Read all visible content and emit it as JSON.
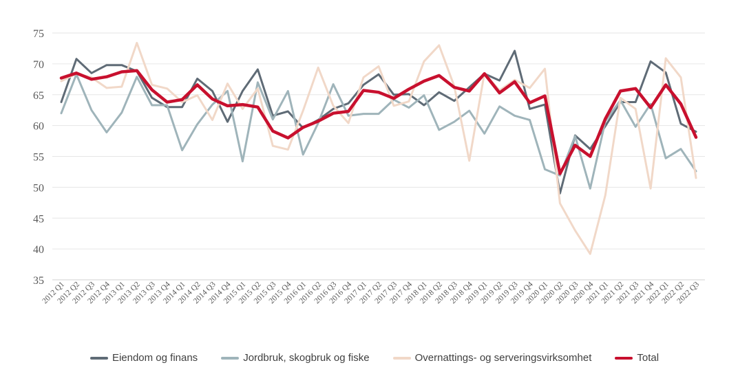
{
  "chart_data": {
    "type": "line",
    "title": "",
    "xlabel": "",
    "ylabel": "",
    "ylim": [
      35,
      75
    ],
    "yticks": [
      35,
      40,
      45,
      50,
      55,
      60,
      65,
      70,
      75
    ],
    "grid": true,
    "legend_position": "bottom",
    "categories": [
      "2012 Q1",
      "2012 Q2",
      "2012 Q3",
      "2012 Q4",
      "2013 Q1",
      "2013 Q2",
      "2013 Q3",
      "2013 Q4",
      "2014 Q1",
      "2014 Q2",
      "2014 Q3",
      "2014 Q4",
      "2015 Q1",
      "2015 Q2",
      "2015 Q3",
      "2015 Q4",
      "2016 Q1",
      "2016 Q2",
      "2016 Q3",
      "2016 Q4",
      "2017 Q1",
      "2017 Q2",
      "2017 Q3",
      "2017 Q4",
      "2018 Q1",
      "2018 Q2",
      "2018 Q3",
      "2018 Q4",
      "2019 Q1",
      "2019 Q2",
      "2019 Q3",
      "2019 Q4",
      "2020 Q1",
      "2020 Q2",
      "2020 Q3",
      "2020 Q4",
      "2021 Q1",
      "2021 Q2",
      "2021 Q3",
      "2021 Q4",
      "2022 Q1",
      "2022 Q2",
      "2022 Q3"
    ],
    "series": [
      {
        "name": "Eiendom og finans",
        "color": "#5f6b76",
        "width": 3,
        "values": [
          63.8,
          70.8,
          68.5,
          69.8,
          69.8,
          68.8,
          64.5,
          63.0,
          63.0,
          67.6,
          65.6,
          60.6,
          65.6,
          69.1,
          61.6,
          62.3,
          59.6,
          60.9,
          62.7,
          63.6,
          66.6,
          68.3,
          65.0,
          65.1,
          63.3,
          65.4,
          64.0,
          66.2,
          68.4,
          67.3,
          72.1,
          62.7,
          63.4,
          49.0,
          58.4,
          56.2,
          59.9,
          63.8,
          63.8,
          70.4,
          68.6,
          60.3,
          59.0
        ]
      },
      {
        "name": "Jordbruk, skogbruk og fiske",
        "color": "#9fb4ba",
        "width": 3,
        "values": [
          62.0,
          68.3,
          62.5,
          58.9,
          62.1,
          67.9,
          63.3,
          63.3,
          56.0,
          60.2,
          63.4,
          65.6,
          54.2,
          67.0,
          61.0,
          65.6,
          55.3,
          60.4,
          66.7,
          61.6,
          61.9,
          61.9,
          64.2,
          62.9,
          64.9,
          59.3,
          60.6,
          62.4,
          58.7,
          63.1,
          61.6,
          60.9,
          52.9,
          51.9,
          58.3,
          49.8,
          60.7,
          64.1,
          59.8,
          63.5,
          54.7,
          56.2,
          52.6
        ]
      },
      {
        "name": "Overnattings- og serveringsvirksomhet",
        "color": "#f1d8c8",
        "width": 3,
        "values": [
          67.2,
          68.4,
          67.8,
          66.1,
          66.3,
          73.4,
          66.6,
          66.0,
          63.8,
          64.9,
          60.9,
          66.8,
          62.7,
          66.0,
          56.7,
          56.1,
          62.4,
          69.4,
          63.2,
          60.4,
          67.8,
          69.6,
          63.2,
          63.9,
          70.4,
          73.0,
          66.4,
          54.3,
          68.5,
          65.7,
          67.4,
          66.1,
          69.2,
          47.4,
          43.0,
          39.2,
          48.7,
          64.5,
          62.7,
          49.8,
          70.9,
          67.8,
          51.5
        ]
      },
      {
        "name": "Total",
        "color": "#c8102e",
        "width": 4.5,
        "values": [
          67.7,
          68.5,
          67.5,
          67.9,
          68.7,
          68.9,
          65.8,
          63.8,
          64.2,
          66.6,
          64.3,
          63.2,
          63.4,
          63.0,
          59.1,
          58.0,
          59.7,
          60.7,
          62.0,
          62.3,
          65.7,
          65.4,
          64.4,
          65.9,
          67.2,
          68.1,
          66.2,
          65.6,
          68.4,
          65.3,
          67.1,
          63.7,
          64.8,
          52.2,
          56.8,
          55.0,
          61.1,
          65.6,
          66.0,
          62.9,
          66.6,
          63.5,
          58.1
        ]
      }
    ]
  }
}
